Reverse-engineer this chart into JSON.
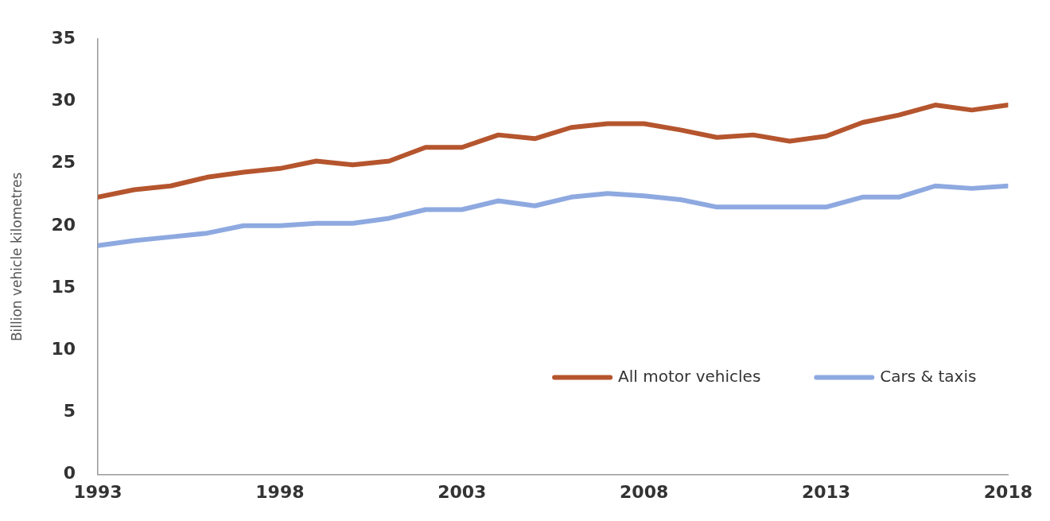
{
  "chart_data": {
    "type": "line",
    "ylabel": "Billion vehicle kilometres",
    "x": [
      1993,
      1994,
      1995,
      1996,
      1997,
      1998,
      1999,
      2000,
      2001,
      2002,
      2003,
      2004,
      2005,
      2006,
      2007,
      2008,
      2009,
      2010,
      2011,
      2012,
      2013,
      2014,
      2015,
      2016,
      2017,
      2018
    ],
    "series": [
      {
        "name": "All motor vehicles",
        "color": "#b5552e",
        "values": [
          22.3,
          22.9,
          23.2,
          23.9,
          24.3,
          24.6,
          25.2,
          24.9,
          25.2,
          26.3,
          26.3,
          27.3,
          27.0,
          27.9,
          28.2,
          28.2,
          27.7,
          27.1,
          27.3,
          26.8,
          27.2,
          28.3,
          28.9,
          29.7,
          29.3,
          29.7
        ]
      },
      {
        "name": "Cars & taxis",
        "color": "#8ea9e0",
        "values": [
          18.4,
          18.8,
          19.1,
          19.4,
          20.0,
          20.0,
          20.2,
          20.2,
          20.6,
          21.3,
          21.3,
          22.0,
          21.6,
          22.3,
          22.6,
          22.4,
          22.1,
          21.5,
          21.5,
          21.5,
          21.5,
          22.3,
          22.3,
          23.2,
          23.0,
          23.2
        ]
      }
    ],
    "xlim": [
      1993,
      2018
    ],
    "xticks": [
      1993,
      1998,
      2003,
      2008,
      2013,
      2018
    ],
    "ylim": [
      0,
      35
    ],
    "yticks": [
      0,
      5,
      10,
      15,
      20,
      25,
      30,
      35
    ],
    "grid": false,
    "legend": "bottom right",
    "marker": "none",
    "line_style": "solid"
  }
}
